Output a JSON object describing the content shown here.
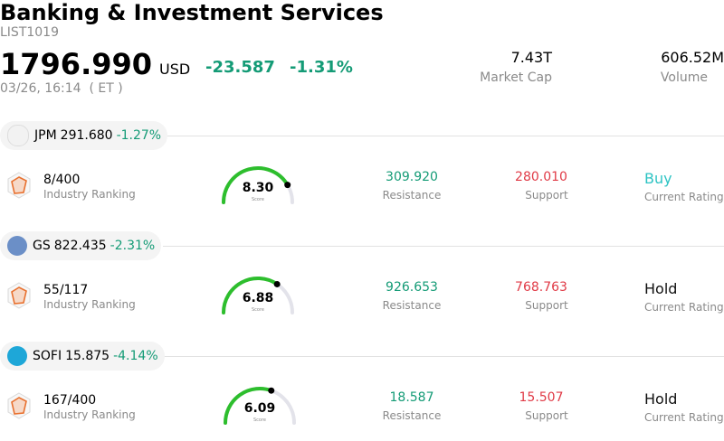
{
  "header": {
    "title": "Banking & Investment Services",
    "code": "LIST1019",
    "price": "1796.990",
    "currency": "USD",
    "change": "-23.587",
    "change_pct": "-1.31%",
    "timestamp": "03/26, 16:14  ( ET )",
    "market_cap_value": "7.43T",
    "market_cap_label": "Market Cap",
    "volume_value": "606.52M",
    "volume_label": "Volume"
  },
  "stocks": [
    {
      "symbol": "JPM",
      "price": "291.680",
      "pct": "-1.27%",
      "rank": "8/400",
      "rank_label": "Industry Ranking",
      "score": "8.30",
      "score_value": 8.3,
      "score_label": "Score",
      "resistance": "309.920",
      "resistance_label": "Resistance",
      "support": "280.010",
      "support_label": "Support",
      "rating": "Buy",
      "rating_label": "Current Rating",
      "rating_color": "#2ec4c4"
    },
    {
      "symbol": "GS",
      "price": "822.435",
      "pct": "-2.31%",
      "rank": "55/117",
      "rank_label": "Industry Ranking",
      "score": "6.88",
      "score_value": 6.88,
      "score_label": "Score",
      "resistance": "926.653",
      "resistance_label": "Resistance",
      "support": "768.763",
      "support_label": "Support",
      "rating": "Hold",
      "rating_label": "Current Rating",
      "rating_color": "#111111"
    },
    {
      "symbol": "SOFI",
      "price": "15.875",
      "pct": "-4.14%",
      "rank": "167/400",
      "rank_label": "Industry Ranking",
      "score": "6.09",
      "score_value": 6.09,
      "score_label": "Score",
      "resistance": "18.587",
      "resistance_label": "Resistance",
      "support": "15.507",
      "support_label": "Support",
      "rating": "Hold",
      "rating_label": "Current Rating",
      "rating_color": "#111111"
    }
  ],
  "colors": {
    "positive": "#149b76",
    "negative": "#e03a46",
    "gauge": "#2dbe2d"
  }
}
